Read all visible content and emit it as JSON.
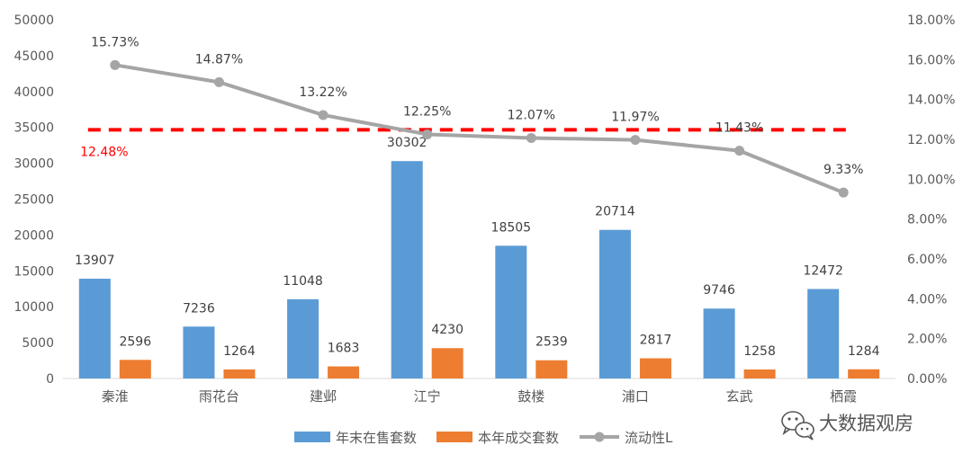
{
  "chart_data": {
    "type": "bar+line",
    "categories": [
      "秦淮",
      "雨花台",
      "建邺",
      "江宁",
      "鼓楼",
      "浦口",
      "玄武",
      "栖霞"
    ],
    "series": [
      {
        "name": "年末在售套数",
        "type": "bar",
        "axis": "left",
        "color": "#5b9bd5",
        "values": [
          13907,
          7236,
          11048,
          30302,
          18505,
          20714,
          9746,
          12472
        ]
      },
      {
        "name": "本年成交套数",
        "type": "bar",
        "axis": "left",
        "color": "#ed7d31",
        "values": [
          2596,
          1264,
          1683,
          4230,
          2539,
          2817,
          1258,
          1284
        ]
      },
      {
        "name": "流动性L",
        "type": "line",
        "axis": "right",
        "color": "#a5a5a5",
        "values": [
          15.73,
          14.87,
          13.22,
          12.25,
          12.07,
          11.97,
          11.43,
          9.33
        ],
        "labels": [
          "15.73%",
          "14.87%",
          "13.22%",
          "12.25%",
          "12.07%",
          "11.97%",
          "11.43%",
          "9.33%"
        ]
      }
    ],
    "reference_line": {
      "value": 12.48,
      "label": "12.48%",
      "axis": "right",
      "color": "#ff0000",
      "style": "dashed"
    },
    "y_left": {
      "min": 0,
      "max": 50000,
      "step": 5000,
      "ticks": [
        "0",
        "5000",
        "10000",
        "15000",
        "20000",
        "25000",
        "30000",
        "35000",
        "40000",
        "45000",
        "50000"
      ]
    },
    "y_right": {
      "min": 0,
      "max": 18,
      "step": 2,
      "ticks": [
        "0.00%",
        "2.00%",
        "4.00%",
        "6.00%",
        "8.00%",
        "10.00%",
        "12.00%",
        "14.00%",
        "16.00%",
        "18.00%"
      ]
    },
    "grid": false,
    "legend_position": "bottom"
  },
  "watermark": {
    "text": "大数据观房",
    "icon": "wechat-icon"
  }
}
